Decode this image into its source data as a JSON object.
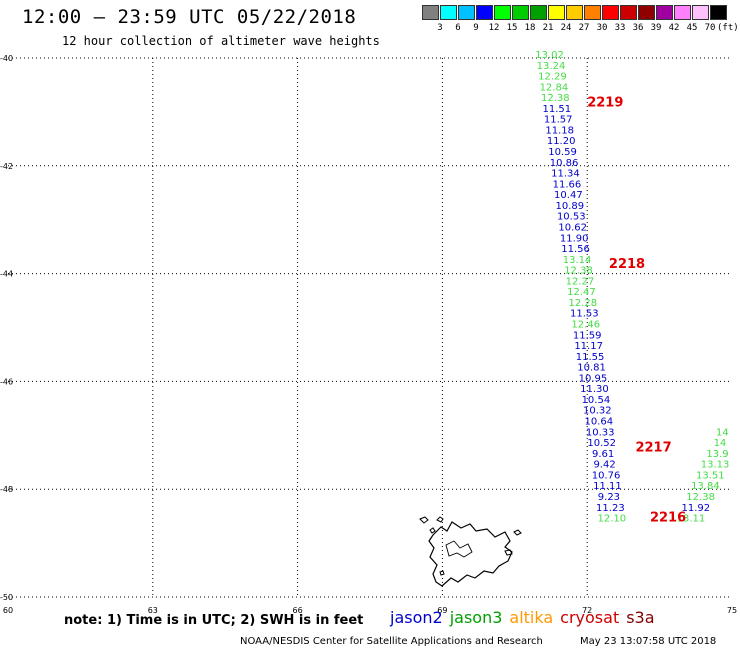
{
  "header": {
    "title": "12:00 – 23:59 UTC 05/22/2018",
    "subtitle": "12 hour collection of altimeter wave heights"
  },
  "legend": {
    "colors": [
      "#808080",
      "#00ffff",
      "#00c0ff",
      "#0000ff",
      "#00ff00",
      "#00cc00",
      "#00a000",
      "#ffff00",
      "#ffcc00",
      "#ff8000",
      "#ff0000",
      "#cc0000",
      "#900000",
      "#a000a0",
      "#ff80ff",
      "#ffc0ff",
      "#000000"
    ],
    "labels": [
      "3",
      "6",
      "9",
      "12",
      "15",
      "18",
      "21",
      "24",
      "27",
      "30",
      "33",
      "36",
      "39",
      "42",
      "45",
      "70"
    ],
    "unit": "(ft)"
  },
  "map": {
    "lon_range": [
      60,
      75
    ],
    "lat_range": [
      -50,
      -40
    ],
    "lon_ticks": [
      "60",
      "63",
      "66",
      "69",
      "72",
      "75"
    ],
    "lat_ticks": [
      "-40",
      "-42",
      "-44",
      "-46",
      "-48",
      "-50"
    ]
  },
  "tracks": [
    {
      "satellite": "jason3",
      "pass": "2219",
      "points": [
        {
          "lon": 71.22,
          "lat": -40.0,
          "v": "13.02",
          "c": "#44dd44"
        },
        {
          "lon": 71.25,
          "lat": -40.2,
          "v": "13.24",
          "c": "#44dd44"
        },
        {
          "lon": 71.28,
          "lat": -40.4,
          "v": "12.29",
          "c": "#44dd44"
        },
        {
          "lon": 71.31,
          "lat": -40.6,
          "v": "12.84",
          "c": "#44dd44"
        },
        {
          "lon": 71.34,
          "lat": -40.8,
          "v": "12.38",
          "c": "#44dd44"
        },
        {
          "lon": 71.37,
          "lat": -41.0,
          "v": "11.51",
          "c": "#0000cc"
        },
        {
          "lon": 71.4,
          "lat": -41.2,
          "v": "11.57",
          "c": "#0000cc"
        },
        {
          "lon": 71.43,
          "lat": -41.4,
          "v": "11.18",
          "c": "#0000cc"
        },
        {
          "lon": 71.46,
          "lat": -41.6,
          "v": "11.20",
          "c": "#0000cc"
        },
        {
          "lon": 71.49,
          "lat": -41.8,
          "v": "10.59",
          "c": "#0000cc"
        },
        {
          "lon": 71.52,
          "lat": -42.0,
          "v": "10.86",
          "c": "#0000cc"
        },
        {
          "lon": 71.55,
          "lat": -42.2,
          "v": "11.34",
          "c": "#0000cc"
        },
        {
          "lon": 71.58,
          "lat": -42.4,
          "v": "11.66",
          "c": "#0000cc"
        },
        {
          "lon": 71.61,
          "lat": -42.6,
          "v": "10.47",
          "c": "#0000cc"
        },
        {
          "lon": 71.64,
          "lat": -42.8,
          "v": "10.89",
          "c": "#0000cc"
        },
        {
          "lon": 71.67,
          "lat": -43.0,
          "v": "10.53",
          "c": "#0000cc"
        },
        {
          "lon": 71.7,
          "lat": -43.2,
          "v": "10.62",
          "c": "#0000cc"
        },
        {
          "lon": 71.73,
          "lat": -43.4,
          "v": "11.90",
          "c": "#0000cc"
        },
        {
          "lon": 71.76,
          "lat": -43.6,
          "v": "11.56",
          "c": "#0000cc"
        }
      ]
    },
    {
      "satellite": "jason3",
      "pass": "2218",
      "points": [
        {
          "lon": 71.79,
          "lat": -43.8,
          "v": "13.14",
          "c": "#44dd44"
        },
        {
          "lon": 71.82,
          "lat": -44.0,
          "v": "12.38",
          "c": "#44dd44"
        },
        {
          "lon": 71.85,
          "lat": -44.2,
          "v": "12.27",
          "c": "#44dd44"
        },
        {
          "lon": 71.88,
          "lat": -44.4,
          "v": "12.47",
          "c": "#44dd44"
        },
        {
          "lon": 71.91,
          "lat": -44.6,
          "v": "12.28",
          "c": "#44dd44"
        },
        {
          "lon": 71.94,
          "lat": -44.8,
          "v": "11.53",
          "c": "#0000cc"
        },
        {
          "lon": 71.97,
          "lat": -45.0,
          "v": "12.46",
          "c": "#44dd44"
        },
        {
          "lon": 72.0,
          "lat": -45.2,
          "v": "11.59",
          "c": "#0000cc"
        },
        {
          "lon": 72.03,
          "lat": -45.4,
          "v": "11.17",
          "c": "#0000cc"
        },
        {
          "lon": 72.06,
          "lat": -45.6,
          "v": "11.55",
          "c": "#0000cc"
        },
        {
          "lon": 72.09,
          "lat": -45.8,
          "v": "10.81",
          "c": "#0000cc"
        },
        {
          "lon": 72.12,
          "lat": -46.0,
          "v": "10.95",
          "c": "#0000cc"
        },
        {
          "lon": 72.15,
          "lat": -46.2,
          "v": "11.30",
          "c": "#0000cc"
        },
        {
          "lon": 72.18,
          "lat": -46.4,
          "v": "10.54",
          "c": "#0000cc"
        },
        {
          "lon": 72.21,
          "lat": -46.6,
          "v": "10.32",
          "c": "#0000cc"
        },
        {
          "lon": 72.24,
          "lat": -46.8,
          "v": "10.64",
          "c": "#0000cc"
        },
        {
          "lon": 72.27,
          "lat": -47.0,
          "v": "10.33",
          "c": "#0000cc"
        }
      ]
    },
    {
      "satellite": "jason3",
      "pass": "2217",
      "points": [
        {
          "lon": 72.3,
          "lat": -47.2,
          "v": "10.52",
          "c": "#0000cc"
        },
        {
          "lon": 72.33,
          "lat": -47.4,
          "v": "9.61",
          "c": "#0000cc"
        },
        {
          "lon": 72.36,
          "lat": -47.6,
          "v": "9.42",
          "c": "#0000cc"
        },
        {
          "lon": 72.39,
          "lat": -47.8,
          "v": "10.76",
          "c": "#0000cc"
        },
        {
          "lon": 72.42,
          "lat": -48.0,
          "v": "11.11",
          "c": "#0000cc"
        },
        {
          "lon": 72.45,
          "lat": -48.2,
          "v": "9.23",
          "c": "#0000cc"
        },
        {
          "lon": 72.48,
          "lat": -48.4,
          "v": "11.23",
          "c": "#0000cc"
        },
        {
          "lon": 72.51,
          "lat": -48.6,
          "v": "12.10",
          "c": "#44dd44"
        }
      ]
    },
    {
      "satellite": "jason2",
      "pass": "2216",
      "points": [
        {
          "lon": 74.8,
          "lat": -47.0,
          "v": "14",
          "c": "#44dd44"
        },
        {
          "lon": 74.75,
          "lat": -47.2,
          "v": "14",
          "c": "#44dd44"
        },
        {
          "lon": 74.7,
          "lat": -47.4,
          "v": "13.9",
          "c": "#44dd44"
        },
        {
          "lon": 74.65,
          "lat": -47.6,
          "v": "13.13",
          "c": "#44dd44"
        },
        {
          "lon": 74.55,
          "lat": -47.8,
          "v": "13.51",
          "c": "#44dd44"
        },
        {
          "lon": 74.45,
          "lat": -48.0,
          "v": "13.84",
          "c": "#44dd44"
        },
        {
          "lon": 74.35,
          "lat": -48.2,
          "v": "12.38",
          "c": "#44dd44"
        },
        {
          "lon": 74.25,
          "lat": -48.4,
          "v": "11.92",
          "c": "#0000cc"
        },
        {
          "lon": 74.15,
          "lat": -48.6,
          "v": "13.11",
          "c": "#44dd44"
        }
      ]
    }
  ],
  "pass_labels": [
    {
      "text": "2219",
      "lon": 72.0,
      "lat": -40.9
    },
    {
      "text": "2218",
      "lon": 72.45,
      "lat": -43.9
    },
    {
      "text": "2217",
      "lon": 73.0,
      "lat": -47.3
    },
    {
      "text": "2216",
      "lon": 73.3,
      "lat": -48.6
    }
  ],
  "note": "note: 1) Time is in UTC; 2) SWH is in feet",
  "satellites": [
    {
      "name": "jason2",
      "color": "#0000cc"
    },
    {
      "name": "jason3",
      "color": "#00a000"
    },
    {
      "name": "altika",
      "color": "#ff9900"
    },
    {
      "name": "cryosat",
      "color": "#cc0000"
    },
    {
      "name": "s3a",
      "color": "#800000"
    }
  ],
  "footer": {
    "credit": "NOAA/NESDIS Center for Satellite Applications and Research",
    "timestamp": "May 23 13:07:58 UTC 2018"
  }
}
